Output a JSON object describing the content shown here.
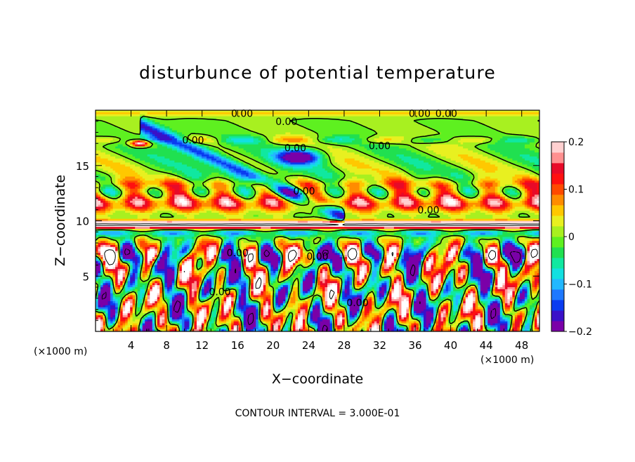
{
  "chart_data": {
    "type": "heatmap",
    "title": "disturbunce of potential temperature",
    "xlabel": "X−coordinate",
    "ylabel": "Z−coordinate",
    "x_unit_label": "(×1000 m)",
    "y_unit_label": "(×1000 m)",
    "xlim": [
      0,
      50
    ],
    "ylim": [
      0,
      20
    ],
    "x_ticks": [
      4,
      8,
      12,
      16,
      20,
      24,
      28,
      32,
      36,
      40,
      44,
      48
    ],
    "y_ticks": [
      5,
      10,
      15
    ],
    "colorbar": {
      "range": [
        -0.2,
        0.2
      ],
      "ticks": [
        "0.2",
        "0.1",
        "0",
        "−0.1",
        "−0.2"
      ],
      "tick_values": [
        0.2,
        0.1,
        0,
        -0.1,
        -0.2
      ],
      "colors": [
        "#7a00a8",
        "#3a10c8",
        "#0a3cf0",
        "#1e78ff",
        "#22b8ff",
        "#12e0e0",
        "#10e8a0",
        "#20e050",
        "#5ef020",
        "#a8f020",
        "#e8f020",
        "#ffc800",
        "#ff8c00",
        "#ff4a00",
        "#ff1010",
        "#e80a28",
        "#ff9090",
        "#ffd0d0"
      ]
    },
    "contour_labels": [
      {
        "text": "0.00",
        "x": 16.5,
        "z": 19.7
      },
      {
        "text": "0.00",
        "x": 21.5,
        "z": 19.0
      },
      {
        "text": "0.00",
        "x": 36.5,
        "z": 19.7
      },
      {
        "text": "0.00",
        "x": 39.5,
        "z": 19.7
      },
      {
        "text": "0.00",
        "x": 11.0,
        "z": 17.3
      },
      {
        "text": "0.00",
        "x": 22.5,
        "z": 16.6
      },
      {
        "text": "0.00",
        "x": 32.0,
        "z": 16.8
      },
      {
        "text": "0.00",
        "x": 23.5,
        "z": 12.7
      },
      {
        "text": "0.00",
        "x": 37.5,
        "z": 11.0
      },
      {
        "text": "0.00",
        "x": 16.0,
        "z": 7.1
      },
      {
        "text": "0.00",
        "x": 25.0,
        "z": 6.8
      },
      {
        "text": "0.00",
        "x": 14.0,
        "z": 3.6
      },
      {
        "text": "0.00",
        "x": 29.5,
        "z": 2.6
      }
    ],
    "footnote": "CONTOUR INTERVAL = 3.000E-01"
  }
}
